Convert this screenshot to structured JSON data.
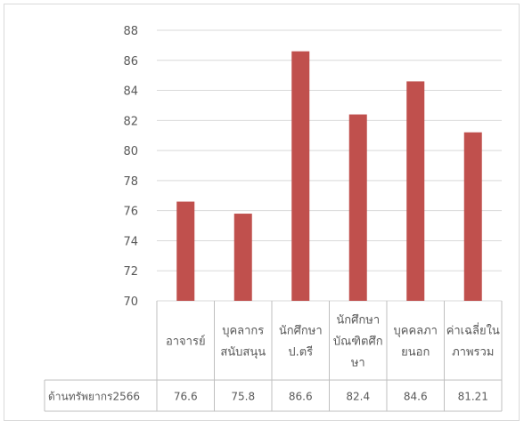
{
  "chart_data": {
    "type": "bar",
    "title": "",
    "xlabel": "",
    "ylabel": "",
    "ylim": [
      70,
      88
    ],
    "y_ticks": [
      70,
      72,
      74,
      76,
      78,
      80,
      82,
      84,
      86,
      88
    ],
    "grid": true,
    "legend": "none",
    "data_table": true,
    "categories": [
      [
        "อาจารย์"
      ],
      [
        "บุคลากร",
        "สนับสนุน"
      ],
      [
        "นักศึกษา",
        "ป.ตรี"
      ],
      [
        "นักศึกษา",
        "บัณฑิตศึก",
        "ษา"
      ],
      [
        "บุคคลภา",
        "ยนอก"
      ],
      [
        "ค่าเฉลี่ยใน",
        "ภาพรวม"
      ]
    ],
    "series": [
      {
        "name": "ด้านทรัพยากร2566",
        "values": [
          76.6,
          75.8,
          86.6,
          82.4,
          84.6,
          81.21
        ],
        "value_labels": [
          "76.6",
          "75.8",
          "86.6",
          "82.4",
          "84.6",
          "81.21"
        ],
        "color": "#c0504d"
      }
    ]
  }
}
